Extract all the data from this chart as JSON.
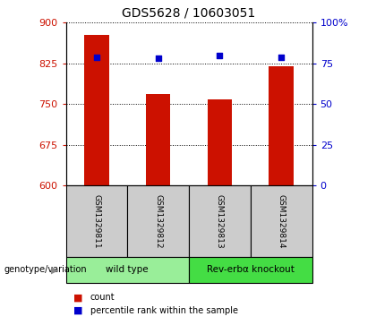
{
  "title": "GDS5628 / 10603051",
  "samples": [
    "GSM1329811",
    "GSM1329812",
    "GSM1329813",
    "GSM1329814"
  ],
  "counts": [
    878,
    768,
    758,
    820
  ],
  "percentile_ranks": [
    79,
    78,
    80,
    79
  ],
  "ylim_left": [
    600,
    900
  ],
  "ylim_right": [
    0,
    100
  ],
  "yticks_left": [
    600,
    675,
    750,
    825,
    900
  ],
  "yticks_right": [
    0,
    25,
    50,
    75,
    100
  ],
  "ytick_labels_right": [
    "0",
    "25",
    "50",
    "75",
    "100%"
  ],
  "bar_color": "#cc1100",
  "dot_color": "#0000cc",
  "groups": [
    {
      "label": "wild type",
      "samples": [
        0,
        1
      ],
      "color": "#99ee99"
    },
    {
      "label": "Rev-erbα knockout",
      "samples": [
        2,
        3
      ],
      "color": "#44dd44"
    }
  ],
  "group_label": "genotype/variation",
  "legend_bar_label": "count",
  "legend_dot_label": "percentile rank within the sample",
  "bg_color": "#ffffff",
  "sample_box_color": "#cccccc",
  "bar_width": 0.4
}
